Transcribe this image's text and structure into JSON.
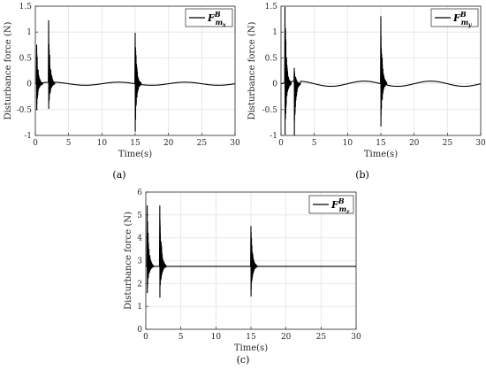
{
  "chart_data": [
    {
      "type": "line",
      "caption": "(a)",
      "xlabel": "Time(s)",
      "ylabel": "Disturbance force (N)",
      "xlim": [
        0,
        30
      ],
      "ylim": [
        -1,
        1.5
      ],
      "xticks": [
        "0",
        "5",
        "10",
        "15",
        "20",
        "25",
        "30"
      ],
      "yticks": [
        "-1",
        "-0.5",
        "0",
        "0.5",
        "1",
        "1.5"
      ],
      "grid": true,
      "legend_position": "top-right",
      "legend": {
        "base": "F",
        "sup": "B",
        "sub": "m",
        "subsub": "x"
      },
      "series": [
        {
          "baseline": 0.0,
          "amplitude": 0.03,
          "period": 10,
          "spikes": [
            {
              "t": 0.2,
              "max": 0.75,
              "min": -0.5
            },
            {
              "t": 2.0,
              "max": 1.22,
              "min": -0.48
            },
            {
              "t": 15.0,
              "max": 0.98,
              "min": -0.92
            }
          ]
        }
      ]
    },
    {
      "type": "line",
      "caption": "(b)",
      "xlabel": "Time(s)",
      "ylabel": "Disturbance force (N)",
      "xlim": [
        0,
        30
      ],
      "ylim": [
        -1,
        1.5
      ],
      "xticks": [
        "0",
        "5",
        "10",
        "15",
        "20",
        "25",
        "30"
      ],
      "yticks": [
        "-1",
        "-0.5",
        "0",
        "0.5",
        "1",
        "1.5"
      ],
      "grid": true,
      "legend_position": "top-right",
      "legend": {
        "base": "F",
        "sup": "B",
        "sub": "m",
        "subsub": "y"
      },
      "series": [
        {
          "baseline": 0.0,
          "amplitude": 0.05,
          "period": 10,
          "spikes": [
            {
              "t": 0.6,
              "max": 1.48,
              "min": -0.98
            },
            {
              "t": 2.0,
              "max": 0.3,
              "min": -1.02
            },
            {
              "t": 15.0,
              "max": 1.3,
              "min": -0.82
            }
          ]
        }
      ]
    },
    {
      "type": "line",
      "caption": "(c)",
      "xlabel": "Time(s)",
      "ylabel": "Disturbance force (N)",
      "xlim": [
        0,
        30
      ],
      "ylim": [
        0,
        6
      ],
      "xticks": [
        "0",
        "5",
        "10",
        "15",
        "20",
        "25",
        "30"
      ],
      "yticks": [
        "0",
        "1",
        "2",
        "3",
        "4",
        "5",
        "6"
      ],
      "grid": true,
      "legend_position": "top-right",
      "legend": {
        "base": "F",
        "sup": "B",
        "sub": "m",
        "subsub": "z"
      },
      "series": [
        {
          "baseline": 2.75,
          "amplitude": 0.0,
          "period": 10,
          "spikes": [
            {
              "t": 0.2,
              "max": 5.4,
              "min": 1.6
            },
            {
              "t": 2.0,
              "max": 5.4,
              "min": 1.4
            },
            {
              "t": 15.0,
              "max": 4.5,
              "min": 1.45
            }
          ]
        }
      ]
    }
  ]
}
